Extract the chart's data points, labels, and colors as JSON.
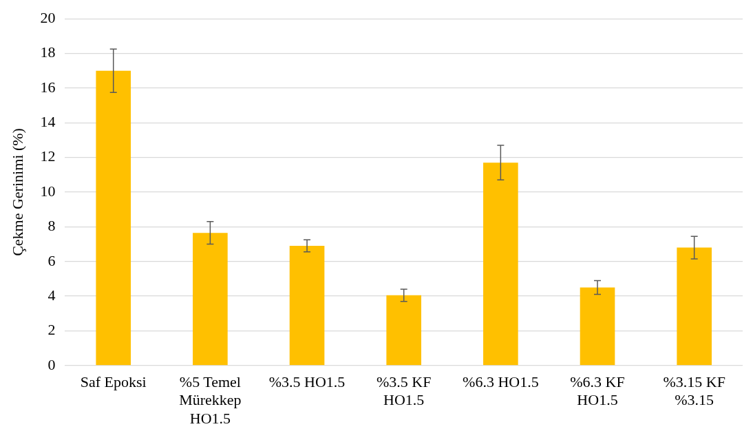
{
  "chart_data": {
    "type": "bar",
    "ylabel": "Çekme Gerinimi (%)",
    "categories": [
      "Saf Epoksi",
      "%5 Temel Mürekkep HO1.5",
      "%3.5 HO1.5",
      "%3.5 KF HO1.5",
      "%6.3 HO1.5",
      "%6.3 KF HO1.5",
      "%3.15 KF %3.15"
    ],
    "values": [
      17,
      7.65,
      6.9,
      4.05,
      11.7,
      4.5,
      6.8
    ],
    "errors": [
      1.25,
      0.65,
      0.35,
      0.35,
      1.0,
      0.4,
      0.65
    ],
    "color": "#ffc000",
    "ylim": [
      0,
      20
    ],
    "yticks": [
      0,
      2,
      4,
      6,
      8,
      10,
      12,
      14,
      16,
      18,
      20
    ],
    "grid": "y",
    "legend": false
  }
}
